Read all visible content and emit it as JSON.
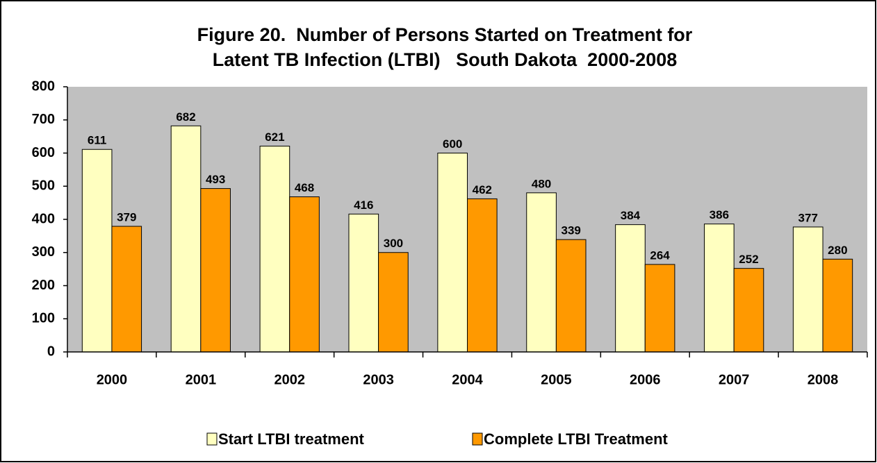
{
  "chart_data": {
    "type": "bar",
    "title": [
      "Figure 20.  Number of Persons Started on Treatment for",
      "Latent TB Infection (LTBI)   South Dakota  2000-2008"
    ],
    "categories": [
      "2000",
      "2001",
      "2002",
      "2003",
      "2004",
      "2005",
      "2006",
      "2007",
      "2008"
    ],
    "series": [
      {
        "name": "Start LTBI treatment",
        "color": "#ffffc0",
        "values": [
          611,
          682,
          621,
          416,
          600,
          480,
          384,
          386,
          377
        ]
      },
      {
        "name": "Complete LTBI Treatment",
        "color": "#ff9900",
        "values": [
          379,
          493,
          468,
          300,
          462,
          339,
          264,
          252,
          280
        ]
      }
    ],
    "ylim": [
      0,
      800
    ],
    "yticks": [
      0,
      100,
      200,
      300,
      400,
      500,
      600,
      700,
      800
    ],
    "plot_background": "#c0c0c0",
    "legend": "bottom",
    "grid": false
  }
}
